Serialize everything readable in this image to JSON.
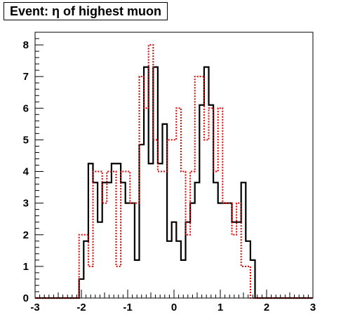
{
  "chart_data": {
    "type": "histogram",
    "title": "Event: η of highest muon",
    "xlim": [
      -3,
      3
    ],
    "ylim": [
      0,
      8.4
    ],
    "bin_width": 0.1,
    "x_ticks": [
      -3,
      -2,
      -1,
      0,
      1,
      2,
      3
    ],
    "x_tick_labels": [
      "-3",
      "-2",
      "-1",
      "0",
      "1",
      "2",
      "3"
    ],
    "y_ticks": [
      0,
      1,
      2,
      3,
      4,
      5,
      6,
      7,
      8
    ],
    "y_tick_labels": [
      "0",
      "1",
      "2",
      "3",
      "4",
      "5",
      "6",
      "7",
      "8"
    ],
    "grid": false,
    "series": [
      {
        "style": "solid",
        "color": "#000000",
        "bin_edges": [
          -3.0,
          -2.05,
          -1.95,
          -1.85,
          -1.75,
          -1.65,
          -1.55,
          -1.45,
          -1.35,
          -1.25,
          -1.15,
          -1.05,
          -0.95,
          -0.85,
          -0.75,
          -0.65,
          -0.55,
          -0.45,
          -0.35,
          -0.25,
          -0.15,
          -0.05,
          0.05,
          0.15,
          0.25,
          0.35,
          0.45,
          0.55,
          0.65,
          0.75,
          0.85,
          0.95,
          1.05,
          1.15,
          1.25,
          1.35,
          1.45,
          1.55,
          1.65,
          1.75,
          1.85,
          1.95,
          2.05,
          2.15,
          3.0
        ],
        "values": [
          0,
          0.6,
          1.8,
          4.25,
          3.65,
          2.4,
          3.65,
          3.65,
          4.25,
          4.25,
          3.65,
          3.0,
          3.0,
          1.2,
          4.85,
          7.3,
          4.25,
          7.3,
          4.25,
          5.5,
          1.8,
          2.4,
          1.8,
          1.2,
          2.4,
          3.0,
          3.65,
          6.1,
          7.3,
          6.1,
          3.65,
          3.0,
          3.0,
          3.0,
          2.4,
          2.4,
          3.65,
          1.8,
          1.2,
          0,
          0,
          0,
          0,
          0
        ]
      },
      {
        "style": "dotted",
        "color": "#e00000",
        "bin_edges": [
          -3.0,
          -2.05,
          -1.95,
          -1.85,
          -1.75,
          -1.65,
          -1.55,
          -1.45,
          -1.35,
          -1.25,
          -1.15,
          -1.05,
          -0.95,
          -0.85,
          -0.75,
          -0.65,
          -0.55,
          -0.45,
          -0.35,
          -0.25,
          -0.15,
          -0.05,
          0.05,
          0.15,
          0.25,
          0.35,
          0.45,
          0.55,
          0.65,
          0.75,
          0.85,
          0.95,
          1.05,
          1.15,
          1.25,
          1.35,
          1.45,
          1.55,
          1.65,
          1.75,
          1.85,
          1.95,
          2.05,
          2.15,
          3.0
        ],
        "values": [
          0,
          2.0,
          2.0,
          1.0,
          4.0,
          4.0,
          3.0,
          4.0,
          4.0,
          1.0,
          4.0,
          4.0,
          3.0,
          3.0,
          7.0,
          6.0,
          8.0,
          5.0,
          4.0,
          4.0,
          5.0,
          5.0,
          6.0,
          4.0,
          2.0,
          4.0,
          7.0,
          7.0,
          5.0,
          6.0,
          4.0,
          6.0,
          3.0,
          3.0,
          2.0,
          3.0,
          1.0,
          1.0,
          0,
          0,
          0,
          0,
          0,
          0
        ]
      }
    ]
  }
}
